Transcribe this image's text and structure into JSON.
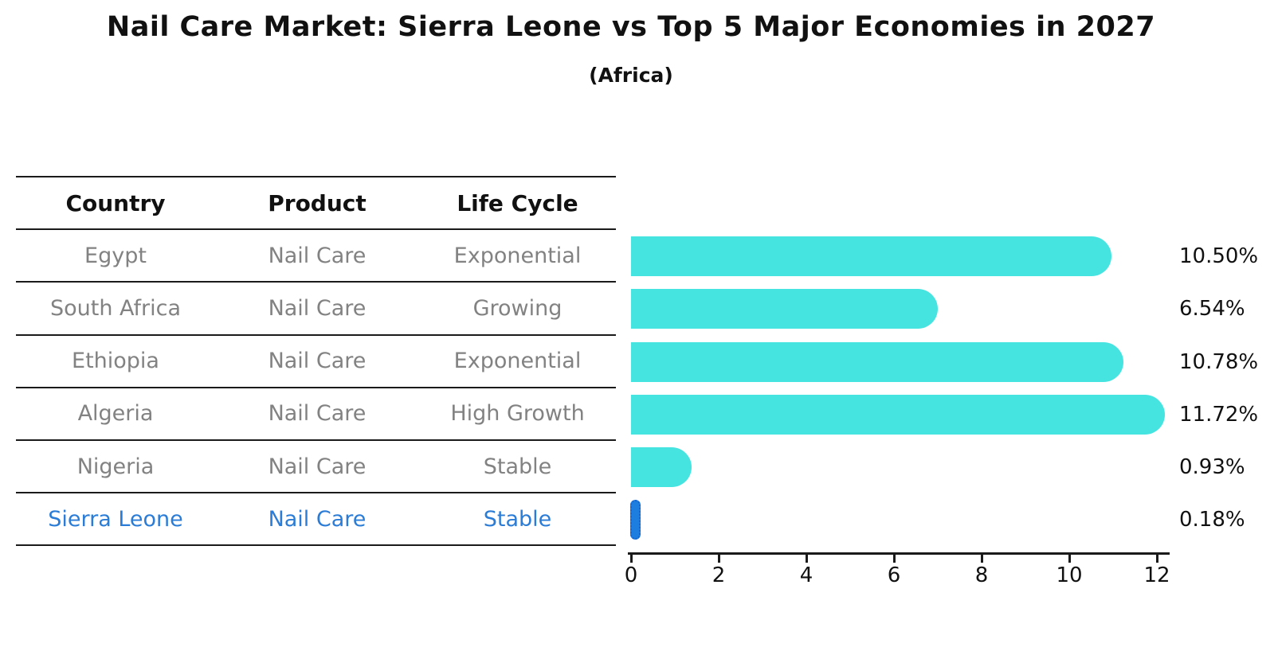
{
  "header": {
    "title": "Nail Care Market: Sierra Leone vs Top 5 Major Economies in 2027",
    "subtitle": "(Africa)"
  },
  "table": {
    "headers": [
      "Country",
      "Product",
      "Life Cycle"
    ],
    "rows": [
      {
        "country": "Egypt",
        "product": "Nail Care",
        "life_cycle": "Exponential",
        "highlight": false
      },
      {
        "country": "South Africa",
        "product": "Nail Care",
        "life_cycle": "Growing",
        "highlight": false
      },
      {
        "country": "Ethiopia",
        "product": "Nail Care",
        "life_cycle": "Exponential",
        "highlight": false
      },
      {
        "country": "Algeria",
        "product": "Nail Care",
        "life_cycle": "High Growth",
        "highlight": false
      },
      {
        "country": "Nigeria",
        "product": "Nail Care",
        "life_cycle": "Stable",
        "highlight": false
      },
      {
        "country": "Sierra Leone",
        "product": "Nail Care",
        "life_cycle": "Stable",
        "highlight": true
      }
    ]
  },
  "chart_data": {
    "type": "bar",
    "orientation": "horizontal",
    "title": "Nail Care Market: Sierra Leone vs Top 5 Major Economies in 2027",
    "subtitle": "(Africa)",
    "categories": [
      "Egypt",
      "South Africa",
      "Ethiopia",
      "Algeria",
      "Nigeria",
      "Sierra Leone"
    ],
    "values": [
      10.5,
      6.54,
      10.78,
      11.72,
      0.93,
      0.18
    ],
    "value_labels": [
      "10.50%",
      "6.54%",
      "10.78%",
      "11.72%",
      "0.93%",
      "0.18%"
    ],
    "xlabel": "",
    "ylabel": "",
    "xlim": [
      0,
      12
    ],
    "x_ticks": [
      "0",
      "2",
      "4",
      "6",
      "8",
      "10",
      "12"
    ],
    "grid": false,
    "legend": false,
    "bar_color": "#46E4E0",
    "highlight_color": "#1E7EE0",
    "highlight_index": 5,
    "text_color": "#111111",
    "muted_text_color": "#828282",
    "highlight_text_color": "#2B7CD6"
  }
}
